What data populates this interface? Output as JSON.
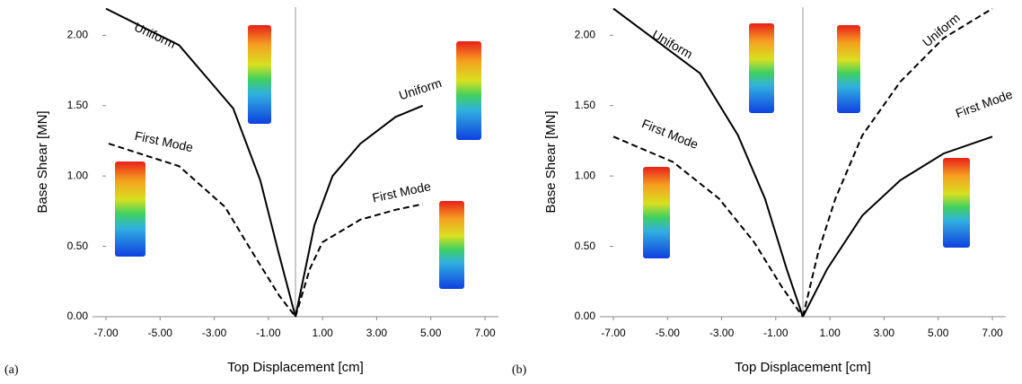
{
  "chart_data": [
    {
      "type": "line",
      "label": "(a)",
      "x_label": "Top Displacement [cm]",
      "y_label": "Base Shear [MN]",
      "xlim": [
        -7,
        7
      ],
      "ylim": [
        0,
        2.2
      ],
      "xticks": [
        {
          "value": -7,
          "label": "-7.00"
        },
        {
          "value": -5,
          "label": "-5.00"
        },
        {
          "value": -3,
          "label": "-3.00"
        },
        {
          "value": -1,
          "label": "-1.00"
        },
        {
          "value": 1,
          "label": "1.00"
        },
        {
          "value": 3,
          "label": "3.00"
        },
        {
          "value": 5,
          "label": "5.00"
        },
        {
          "value": 7,
          "label": "7.00"
        }
      ],
      "yticks": [
        {
          "value": 0,
          "label": "0.00"
        },
        {
          "value": 0.5,
          "label": "0.50"
        },
        {
          "value": 1,
          "label": "1.00"
        },
        {
          "value": 1.5,
          "label": "1.50"
        },
        {
          "value": 2,
          "label": "2.00"
        }
      ],
      "series": [
        {
          "name": "Uniform",
          "color": "#000000",
          "style": "solid",
          "x": [
            -7,
            -4.3,
            -2.3,
            -1.3,
            -0.63,
            0
          ],
          "values": [
            2.19,
            1.93,
            1.48,
            0.97,
            0.46,
            0
          ]
        },
        {
          "name": "First Mode",
          "color": "#000000",
          "style": "dashed",
          "x": [
            -6.9,
            -4.3,
            -2.6,
            -1.6,
            -0.6,
            0
          ],
          "values": [
            1.23,
            1.07,
            0.78,
            0.46,
            0.15,
            0
          ]
        },
        {
          "name": "Uniform",
          "color": "#000000",
          "style": "solid",
          "x": [
            0,
            0.7,
            1.37,
            2.4,
            3.7,
            4.7
          ],
          "values": [
            0,
            0.65,
            1.0,
            1.23,
            1.42,
            1.5
          ]
        },
        {
          "name": "First Mode",
          "color": "#000000",
          "style": "dashed",
          "x": [
            0,
            0.53,
            1.0,
            2.4,
            3.7,
            4.7
          ],
          "values": [
            0,
            0.34,
            0.53,
            0.69,
            0.76,
            0.8
          ]
        }
      ]
    },
    {
      "type": "line",
      "label": "(b)",
      "x_label": "Top Displacement [cm]",
      "y_label": "Base Shear [MN]",
      "xlim": [
        -7,
        7
      ],
      "ylim": [
        0,
        2.2
      ],
      "xticks": [
        {
          "value": -7,
          "label": "-7.00"
        },
        {
          "value": -5,
          "label": "-5.00"
        },
        {
          "value": -3,
          "label": "-3.00"
        },
        {
          "value": -1,
          "label": "-1.00"
        },
        {
          "value": 1,
          "label": "1.00"
        },
        {
          "value": 3,
          "label": "3.00"
        },
        {
          "value": 5,
          "label": "5.00"
        },
        {
          "value": 7,
          "label": "7.00"
        }
      ],
      "yticks": [
        {
          "value": 0,
          "label": "0.00"
        },
        {
          "value": 0.5,
          "label": "0.50"
        },
        {
          "value": 1,
          "label": "1.00"
        },
        {
          "value": 1.5,
          "label": "1.50"
        },
        {
          "value": 2,
          "label": "2.00"
        }
      ],
      "series": [
        {
          "name": "Uniform",
          "color": "#000000",
          "style": "solid",
          "x": [
            -7,
            -3.8,
            -2.4,
            -1.4,
            -0.6,
            0
          ],
          "values": [
            2.19,
            1.73,
            1.29,
            0.84,
            0.34,
            0
          ]
        },
        {
          "name": "First Mode",
          "color": "#000000",
          "style": "dashed",
          "x": [
            -7,
            -4.8,
            -3.1,
            -1.8,
            -0.77,
            0
          ],
          "values": [
            1.28,
            1.1,
            0.84,
            0.53,
            0.21,
            0
          ]
        },
        {
          "name": "Uniform",
          "color": "#000000",
          "style": "dashed",
          "x": [
            0,
            0.57,
            1.2,
            2.2,
            3.6,
            5.2,
            7
          ],
          "values": [
            0,
            0.46,
            0.84,
            1.29,
            1.67,
            1.98,
            2.19
          ]
        },
        {
          "name": "First Mode",
          "color": "#000000",
          "style": "solid",
          "x": [
            0,
            0.9,
            2.2,
            3.6,
            5.2,
            7
          ],
          "values": [
            0,
            0.34,
            0.72,
            0.97,
            1.16,
            1.28
          ]
        }
      ]
    }
  ]
}
